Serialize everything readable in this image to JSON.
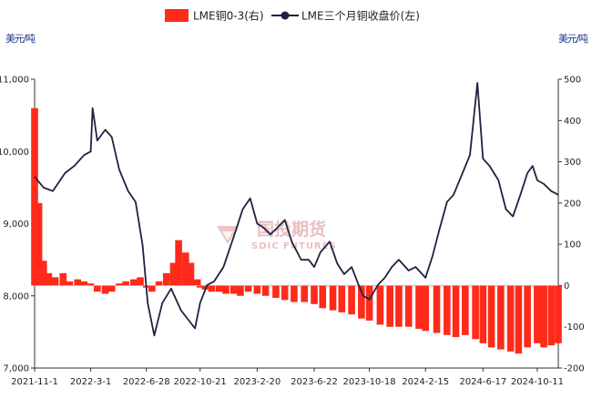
{
  "chart_data": {
    "type": "bar+line",
    "legend": [
      {
        "label": "LME铜0-3(右)",
        "kind": "bar",
        "color": "#ff2a1a"
      },
      {
        "label": "LME三个月铜收盘价(左)",
        "kind": "line",
        "color": "#1f2240"
      }
    ],
    "left_axis": {
      "unit": "美元/吨",
      "ticks": [
        "7,000",
        "8,000",
        "9,000",
        "10,000",
        "11,000"
      ],
      "ylim": [
        7000,
        11000
      ]
    },
    "right_axis": {
      "unit": "美元/吨",
      "ticks": [
        "-200",
        "-100",
        "0",
        "100",
        "200",
        "300",
        "400",
        "500"
      ],
      "ylim": [
        -200,
        500
      ]
    },
    "x_axis": {
      "ticks": [
        "2021-11-1",
        "2022-3-1",
        "2022-6-28",
        "2022-10-21",
        "2023-2-20",
        "2023-6-22",
        "2023-10-18",
        "2024-2-15",
        "2024-6-17",
        "2024-10-11"
      ],
      "range": [
        "2021-11-01",
        "2024-11-25"
      ]
    },
    "series": [
      {
        "name": "LME三个月铜收盘价(左)",
        "axis": "left",
        "x": [
          "2021-11-01",
          "2021-11-20",
          "2021-12-10",
          "2022-01-05",
          "2022-01-25",
          "2022-02-15",
          "2022-03-01",
          "2022-03-05",
          "2022-03-15",
          "2022-04-01",
          "2022-04-15",
          "2022-05-01",
          "2022-05-20",
          "2022-06-05",
          "2022-06-20",
          "2022-07-01",
          "2022-07-15",
          "2022-08-01",
          "2022-08-20",
          "2022-09-10",
          "2022-09-28",
          "2022-10-10",
          "2022-10-21",
          "2022-11-05",
          "2022-11-20",
          "2022-12-10",
          "2023-01-05",
          "2023-01-20",
          "2023-02-05",
          "2023-02-20",
          "2023-03-05",
          "2023-03-20",
          "2023-04-05",
          "2023-04-20",
          "2023-05-05",
          "2023-05-25",
          "2023-06-10",
          "2023-06-22",
          "2023-07-05",
          "2023-07-25",
          "2023-08-10",
          "2023-08-25",
          "2023-09-10",
          "2023-09-25",
          "2023-10-05",
          "2023-10-18",
          "2023-11-05",
          "2023-11-20",
          "2023-12-05",
          "2023-12-20",
          "2024-01-10",
          "2024-01-25",
          "2024-02-15",
          "2024-03-01",
          "2024-03-15",
          "2024-04-01",
          "2024-04-15",
          "2024-05-01",
          "2024-05-20",
          "2024-06-05",
          "2024-06-17",
          "2024-07-01",
          "2024-07-20",
          "2024-08-05",
          "2024-08-20",
          "2024-09-05",
          "2024-09-20",
          "2024-10-01",
          "2024-10-11",
          "2024-10-25",
          "2024-11-10",
          "2024-11-25"
        ],
        "y": [
          9650,
          9500,
          9450,
          9700,
          9800,
          9950,
          10000,
          10600,
          10150,
          10300,
          10200,
          9750,
          9450,
          9300,
          8700,
          7900,
          7450,
          7900,
          8100,
          7800,
          7650,
          7550,
          7900,
          8150,
          8200,
          8400,
          8900,
          9200,
          9350,
          9000,
          8950,
          8850,
          8950,
          9050,
          8750,
          8500,
          8500,
          8400,
          8600,
          8750,
          8450,
          8300,
          8400,
          8150,
          8000,
          7950,
          8150,
          8250,
          8400,
          8500,
          8350,
          8400,
          8250,
          8550,
          8900,
          9300,
          9400,
          9650,
          9950,
          10950,
          9900,
          9800,
          9600,
          9200,
          9100,
          9400,
          9700,
          9800,
          9600,
          9550,
          9450,
          9400
        ]
      },
      {
        "name": "LME铜0-3(右)",
        "axis": "right",
        "x": [
          "2021-11-01",
          "2021-11-10",
          "2021-11-20",
          "2021-12-01",
          "2021-12-15",
          "2022-01-01",
          "2022-01-15",
          "2022-02-01",
          "2022-02-15",
          "2022-03-01",
          "2022-03-15",
          "2022-04-01",
          "2022-04-15",
          "2022-05-01",
          "2022-05-15",
          "2022-06-01",
          "2022-06-15",
          "2022-06-28",
          "2022-07-10",
          "2022-07-25",
          "2022-08-10",
          "2022-08-25",
          "2022-09-05",
          "2022-09-20",
          "2022-10-01",
          "2022-10-15",
          "2022-10-21",
          "2022-11-01",
          "2022-11-15",
          "2022-12-01",
          "2022-12-15",
          "2023-01-01",
          "2023-01-15",
          "2023-02-01",
          "2023-02-20",
          "2023-03-10",
          "2023-04-01",
          "2023-04-20",
          "2023-05-10",
          "2023-06-01",
          "2023-06-22",
          "2023-07-10",
          "2023-08-01",
          "2023-08-20",
          "2023-09-10",
          "2023-10-01",
          "2023-10-18",
          "2023-11-10",
          "2023-12-01",
          "2023-12-20",
          "2024-01-10",
          "2024-02-01",
          "2024-02-15",
          "2024-03-10",
          "2024-04-01",
          "2024-04-20",
          "2024-05-10",
          "2024-06-01",
          "2024-06-17",
          "2024-07-05",
          "2024-07-25",
          "2024-08-15",
          "2024-09-01",
          "2024-09-20",
          "2024-10-11",
          "2024-10-25",
          "2024-11-10",
          "2024-11-25"
        ],
        "y": [
          430,
          200,
          60,
          30,
          20,
          30,
          10,
          15,
          10,
          5,
          -15,
          -20,
          -15,
          5,
          10,
          15,
          20,
          -5,
          -15,
          10,
          30,
          55,
          110,
          80,
          55,
          15,
          -5,
          -10,
          -15,
          -15,
          -20,
          -20,
          -25,
          -15,
          -20,
          -25,
          -30,
          -35,
          -40,
          -40,
          -45,
          -55,
          -60,
          -65,
          -70,
          -80,
          -85,
          -95,
          -100,
          -100,
          -100,
          -105,
          -110,
          -115,
          -120,
          -125,
          -120,
          -130,
          -140,
          -150,
          -155,
          -160,
          -165,
          -150,
          -140,
          -150,
          -145,
          -140
        ]
      }
    ]
  },
  "watermark": {
    "cn": "国投期货",
    "en": "SDIC FUTURES"
  }
}
